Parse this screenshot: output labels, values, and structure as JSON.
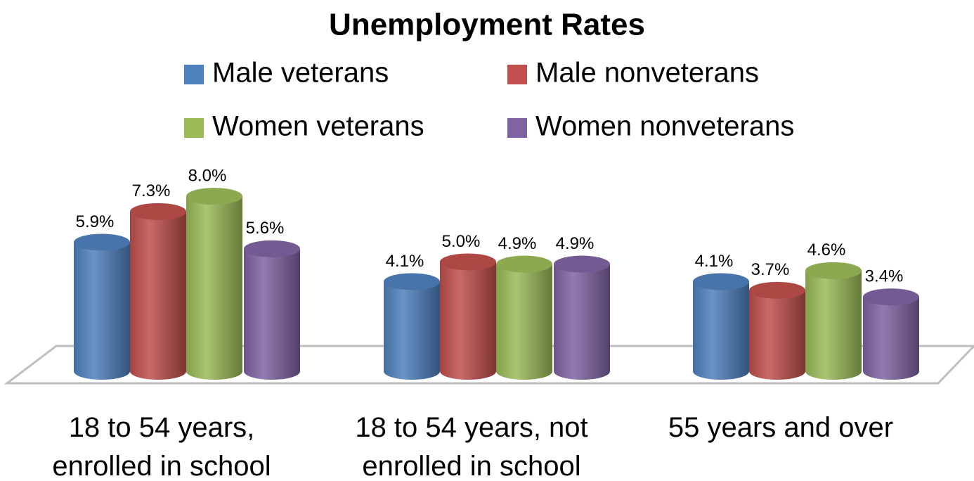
{
  "chart_data": {
    "type": "bar3d",
    "title": "Unemployment Rates",
    "categories": [
      "18 to 54 years, enrolled in school",
      "18 to 54 years, not enrolled in school",
      "55 years and over"
    ],
    "series": [
      {
        "name": "Male veterans",
        "color": "#4f81bd",
        "values": [
          5.9,
          4.1,
          4.1
        ],
        "value_labels": [
          "5.9%",
          "4.1%",
          "4.1%"
        ]
      },
      {
        "name": "Male nonveterans",
        "color": "#c0504d",
        "values": [
          7.3,
          5.0,
          3.7
        ],
        "value_labels": [
          "7.3%",
          "5.0%",
          "3.7%"
        ]
      },
      {
        "name": "Women veterans",
        "color": "#9bbb59",
        "values": [
          8.0,
          4.9,
          4.6
        ],
        "value_labels": [
          "8.0%",
          "4.9%",
          "4.6%"
        ]
      },
      {
        "name": "Women nonveterans",
        "color": "#8064a2",
        "values": [
          5.6,
          4.9,
          3.4
        ],
        "value_labels": [
          "5.6%",
          "4.9%",
          "3.4%"
        ]
      }
    ],
    "ylim": [
      0,
      9
    ],
    "legend": "top"
  }
}
